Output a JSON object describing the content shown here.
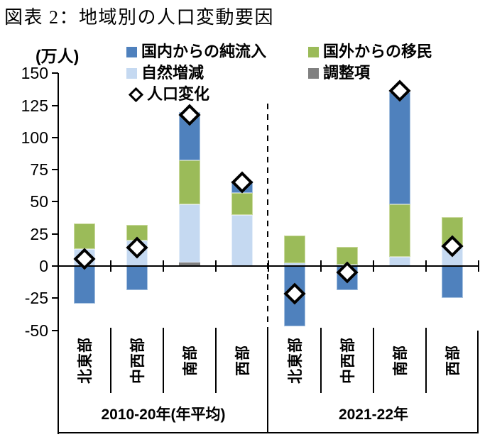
{
  "title": "図表 2：地域別の人口変動要因",
  "unit_label": "(万人)",
  "legend": {
    "items": [
      {
        "label": "国内からの純流入",
        "color": "#4F81BD",
        "marker": "square"
      },
      {
        "label": "国外からの移民",
        "color": "#9BBB59",
        "marker": "square"
      },
      {
        "label": "自然増減",
        "color": "#C5D9F1",
        "marker": "square"
      },
      {
        "label": "調整項",
        "color": "#808080",
        "marker": "square"
      },
      {
        "label": "人口変化",
        "color": "#000000",
        "marker": "diamond"
      }
    ]
  },
  "chart_data": {
    "type": "bar",
    "subtype": "stacked-bars-with-diamond-markers",
    "title": "地域別の人口変動要因",
    "ylabel": "(万人)",
    "ylim": [
      -50,
      150
    ],
    "yticks": [
      150,
      125,
      100,
      75,
      50,
      25,
      0,
      -25,
      -50
    ],
    "grid": false,
    "legend_position": "top",
    "groups": [
      {
        "label": "2010-20年(年平均)",
        "categories": [
          "北東部",
          "中西部",
          "南部",
          "西部"
        ]
      },
      {
        "label": "2021-22年",
        "categories": [
          "北東部",
          "中西部",
          "南部",
          "西部"
        ]
      }
    ],
    "stack_order_bottom_to_top": [
      "調整項",
      "自然増減",
      "国外からの移民",
      "国内からの純流入"
    ],
    "series": [
      {
        "name": "国内からの純流入",
        "color": "#4F81BD",
        "values": [
          -29,
          -19,
          38,
          9,
          -47,
          -19,
          87,
          -25
        ]
      },
      {
        "name": "国外からの移民",
        "color": "#9BBB59",
        "values": [
          20,
          12,
          34,
          17,
          22,
          14,
          41,
          23
        ]
      },
      {
        "name": "自然増減",
        "color": "#C5D9F1",
        "values": [
          13,
          20,
          45,
          40,
          2,
          1,
          7,
          15
        ]
      },
      {
        "name": "調整項",
        "color": "#808080",
        "values": [
          0,
          0,
          3,
          0,
          0,
          0,
          0,
          0
        ]
      }
    ],
    "markers": {
      "name": "人口変化",
      "shape": "open-diamond",
      "values": [
        5,
        14,
        117,
        65,
        -22,
        -5,
        136,
        15
      ]
    }
  }
}
